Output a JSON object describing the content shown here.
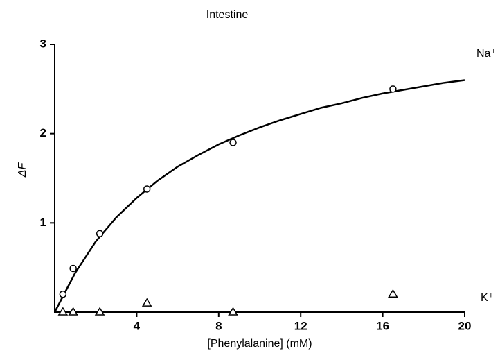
{
  "chart_data": {
    "type": "scatter",
    "title": "Intestine",
    "x_label": "[Phenylalanine] (mM)",
    "y_label": "ΔF",
    "xlim": [
      0,
      20
    ],
    "ylim": [
      0,
      3
    ],
    "xticks": [
      4,
      8,
      12,
      16,
      20
    ],
    "yticks": [
      1,
      2,
      3
    ],
    "series": [
      {
        "name": "Na⁺",
        "marker": "circle",
        "color": "#000000",
        "x": [
          0.4,
          0.9,
          2.2,
          4.5,
          8.7,
          16.5
        ],
        "values": [
          0.2,
          0.49,
          0.88,
          1.38,
          1.9,
          2.5
        ]
      },
      {
        "name": "K⁺",
        "marker": "triangle",
        "color": "#000000",
        "x": [
          0.4,
          0.9,
          2.2,
          4.5,
          8.7,
          16.5
        ],
        "values": [
          0,
          0,
          0,
          0.1,
          0,
          0.2
        ]
      }
    ],
    "fit": {
      "color": "#000000",
      "x": [
        0,
        1,
        2,
        3,
        4,
        5,
        6,
        7,
        8,
        9,
        10,
        11,
        12,
        13,
        14,
        15,
        16,
        17,
        18,
        19,
        20
      ],
      "values": [
        0,
        0.44,
        0.79,
        1.06,
        1.28,
        1.47,
        1.63,
        1.76,
        1.88,
        1.98,
        2.07,
        2.15,
        2.22,
        2.29,
        2.34,
        2.4,
        2.45,
        2.49,
        2.53,
        2.57,
        2.6
      ]
    }
  }
}
